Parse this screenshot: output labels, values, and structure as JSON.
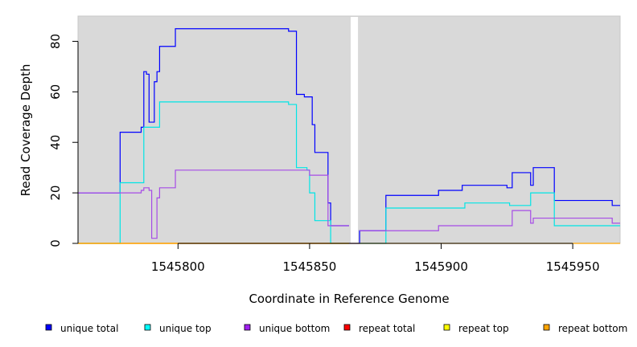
{
  "chart_data": {
    "type": "line",
    "title": "",
    "xlabel": "Coordinate in Reference Genome",
    "ylabel": "Read Coverage Depth",
    "xlim": [
      1545762,
      1545968
    ],
    "ylim": [
      0,
      90
    ],
    "x_ticks": [
      1545800,
      1545850,
      1545900,
      1545950
    ],
    "x_tick_labels": [
      "1545800",
      "1545850",
      "1545900",
      "1545950"
    ],
    "y_ticks": [
      0,
      20,
      40,
      60,
      80
    ],
    "y_tick_labels": [
      "0",
      "20",
      "40",
      "60",
      "80"
    ],
    "plot_background": "#d9d9d9",
    "gaps": [
      [
        1545865,
        1545869
      ]
    ],
    "step_plot": true,
    "series": [
      {
        "name": "unique total",
        "color": "#0000ff",
        "points": [
          [
            1545762,
            20
          ],
          [
            1545778,
            20
          ],
          [
            1545778,
            44
          ],
          [
            1545786,
            44
          ],
          [
            1545786,
            46
          ],
          [
            1545787,
            46
          ],
          [
            1545787,
            68
          ],
          [
            1545788,
            68
          ],
          [
            1545788,
            67
          ],
          [
            1545789,
            67
          ],
          [
            1545789,
            48
          ],
          [
            1545791,
            48
          ],
          [
            1545791,
            64
          ],
          [
            1545792,
            64
          ],
          [
            1545792,
            68
          ],
          [
            1545793,
            68
          ],
          [
            1545793,
            78
          ],
          [
            1545799,
            78
          ],
          [
            1545799,
            85
          ],
          [
            1545842,
            85
          ],
          [
            1545842,
            84
          ],
          [
            1545845,
            84
          ],
          [
            1545845,
            59
          ],
          [
            1545848,
            59
          ],
          [
            1545848,
            58
          ],
          [
            1545851,
            58
          ],
          [
            1545851,
            47
          ],
          [
            1545852,
            47
          ],
          [
            1545852,
            36
          ],
          [
            1545857,
            36
          ],
          [
            1545857,
            16
          ],
          [
            1545858,
            16
          ],
          [
            1545858,
            7
          ],
          [
            1545865,
            7
          ]
        ]
      },
      {
        "name": "unique total",
        "color": "#0000ff",
        "points": [
          [
            1545865,
            0
          ],
          [
            1545869,
            0
          ],
          [
            1545869,
            5
          ],
          [
            1545879,
            5
          ],
          [
            1545879,
            19
          ],
          [
            1545899,
            19
          ],
          [
            1545899,
            21
          ],
          [
            1545908,
            21
          ],
          [
            1545908,
            23
          ],
          [
            1545925,
            23
          ],
          [
            1545925,
            22
          ],
          [
            1545927,
            22
          ],
          [
            1545927,
            28
          ],
          [
            1545934,
            28
          ],
          [
            1545934,
            23
          ],
          [
            1545935,
            23
          ],
          [
            1545935,
            30
          ],
          [
            1545943,
            30
          ],
          [
            1545943,
            17
          ],
          [
            1545965,
            17
          ],
          [
            1545965,
            15
          ],
          [
            1545968,
            15
          ]
        ]
      },
      {
        "name": "unique top",
        "color": "#00e5e5",
        "points": [
          [
            1545762,
            0
          ],
          [
            1545778,
            0
          ],
          [
            1545778,
            24
          ],
          [
            1545787,
            24
          ],
          [
            1545787,
            46
          ],
          [
            1545793,
            46
          ],
          [
            1545793,
            56
          ],
          [
            1545842,
            56
          ],
          [
            1545842,
            55
          ],
          [
            1545845,
            55
          ],
          [
            1545845,
            30
          ],
          [
            1545849,
            30
          ],
          [
            1545849,
            29
          ],
          [
            1545850,
            29
          ],
          [
            1545850,
            20
          ],
          [
            1545852,
            20
          ],
          [
            1545852,
            9
          ],
          [
            1545858,
            9
          ],
          [
            1545858,
            0
          ],
          [
            1545865,
            0
          ]
        ]
      },
      {
        "name": "unique top",
        "color": "#00e5e5",
        "points": [
          [
            1545869,
            0
          ],
          [
            1545879,
            0
          ],
          [
            1545879,
            14
          ],
          [
            1545909,
            14
          ],
          [
            1545909,
            16
          ],
          [
            1545926,
            16
          ],
          [
            1545926,
            15
          ],
          [
            1545934,
            15
          ],
          [
            1545934,
            20
          ],
          [
            1545943,
            20
          ],
          [
            1545943,
            7
          ],
          [
            1545968,
            7
          ]
        ]
      },
      {
        "name": "unique bottom",
        "color": "#a64ce6",
        "points": [
          [
            1545762,
            20
          ],
          [
            1545786,
            20
          ],
          [
            1545786,
            21
          ],
          [
            1545787,
            21
          ],
          [
            1545787,
            22
          ],
          [
            1545789,
            22
          ],
          [
            1545789,
            21
          ],
          [
            1545790,
            21
          ],
          [
            1545790,
            2
          ],
          [
            1545792,
            2
          ],
          [
            1545792,
            18
          ],
          [
            1545793,
            18
          ],
          [
            1545793,
            22
          ],
          [
            1545799,
            22
          ],
          [
            1545799,
            29
          ],
          [
            1545850,
            29
          ],
          [
            1545850,
            27
          ],
          [
            1545857,
            27
          ],
          [
            1545857,
            7
          ],
          [
            1545865,
            7
          ]
        ]
      },
      {
        "name": "unique bottom",
        "color": "#a64ce6",
        "points": [
          [
            1545869,
            5
          ],
          [
            1545899,
            5
          ],
          [
            1545899,
            7
          ],
          [
            1545927,
            7
          ],
          [
            1545927,
            13
          ],
          [
            1545934,
            13
          ],
          [
            1545934,
            8
          ],
          [
            1545935,
            8
          ],
          [
            1545935,
            10
          ],
          [
            1545965,
            10
          ],
          [
            1545965,
            8
          ],
          [
            1545968,
            8
          ]
        ]
      },
      {
        "name": "repeat total",
        "color": "#ff0000",
        "points": [
          [
            1545762,
            0
          ],
          [
            1545865,
            0
          ]
        ]
      },
      {
        "name": "repeat top",
        "color": "#ffff00",
        "points": [
          [
            1545762,
            0
          ],
          [
            1545865,
            0
          ]
        ]
      },
      {
        "name": "repeat bottom",
        "color": "#ffa500",
        "points": [
          [
            1545762,
            0
          ],
          [
            1545865,
            0
          ],
          [
            1545865,
            0
          ],
          [
            1545968,
            0
          ]
        ]
      }
    ],
    "legend": [
      {
        "label": "unique total",
        "color": "#0000ff"
      },
      {
        "label": "unique top",
        "color": "#00ffff"
      },
      {
        "label": "unique bottom",
        "color": "#a020f0"
      },
      {
        "label": "repeat total",
        "color": "#ff0000"
      },
      {
        "label": "repeat top",
        "color": "#ffff00"
      },
      {
        "label": "repeat bottom",
        "color": "#ffa500"
      }
    ],
    "legend_position": "bottom"
  }
}
